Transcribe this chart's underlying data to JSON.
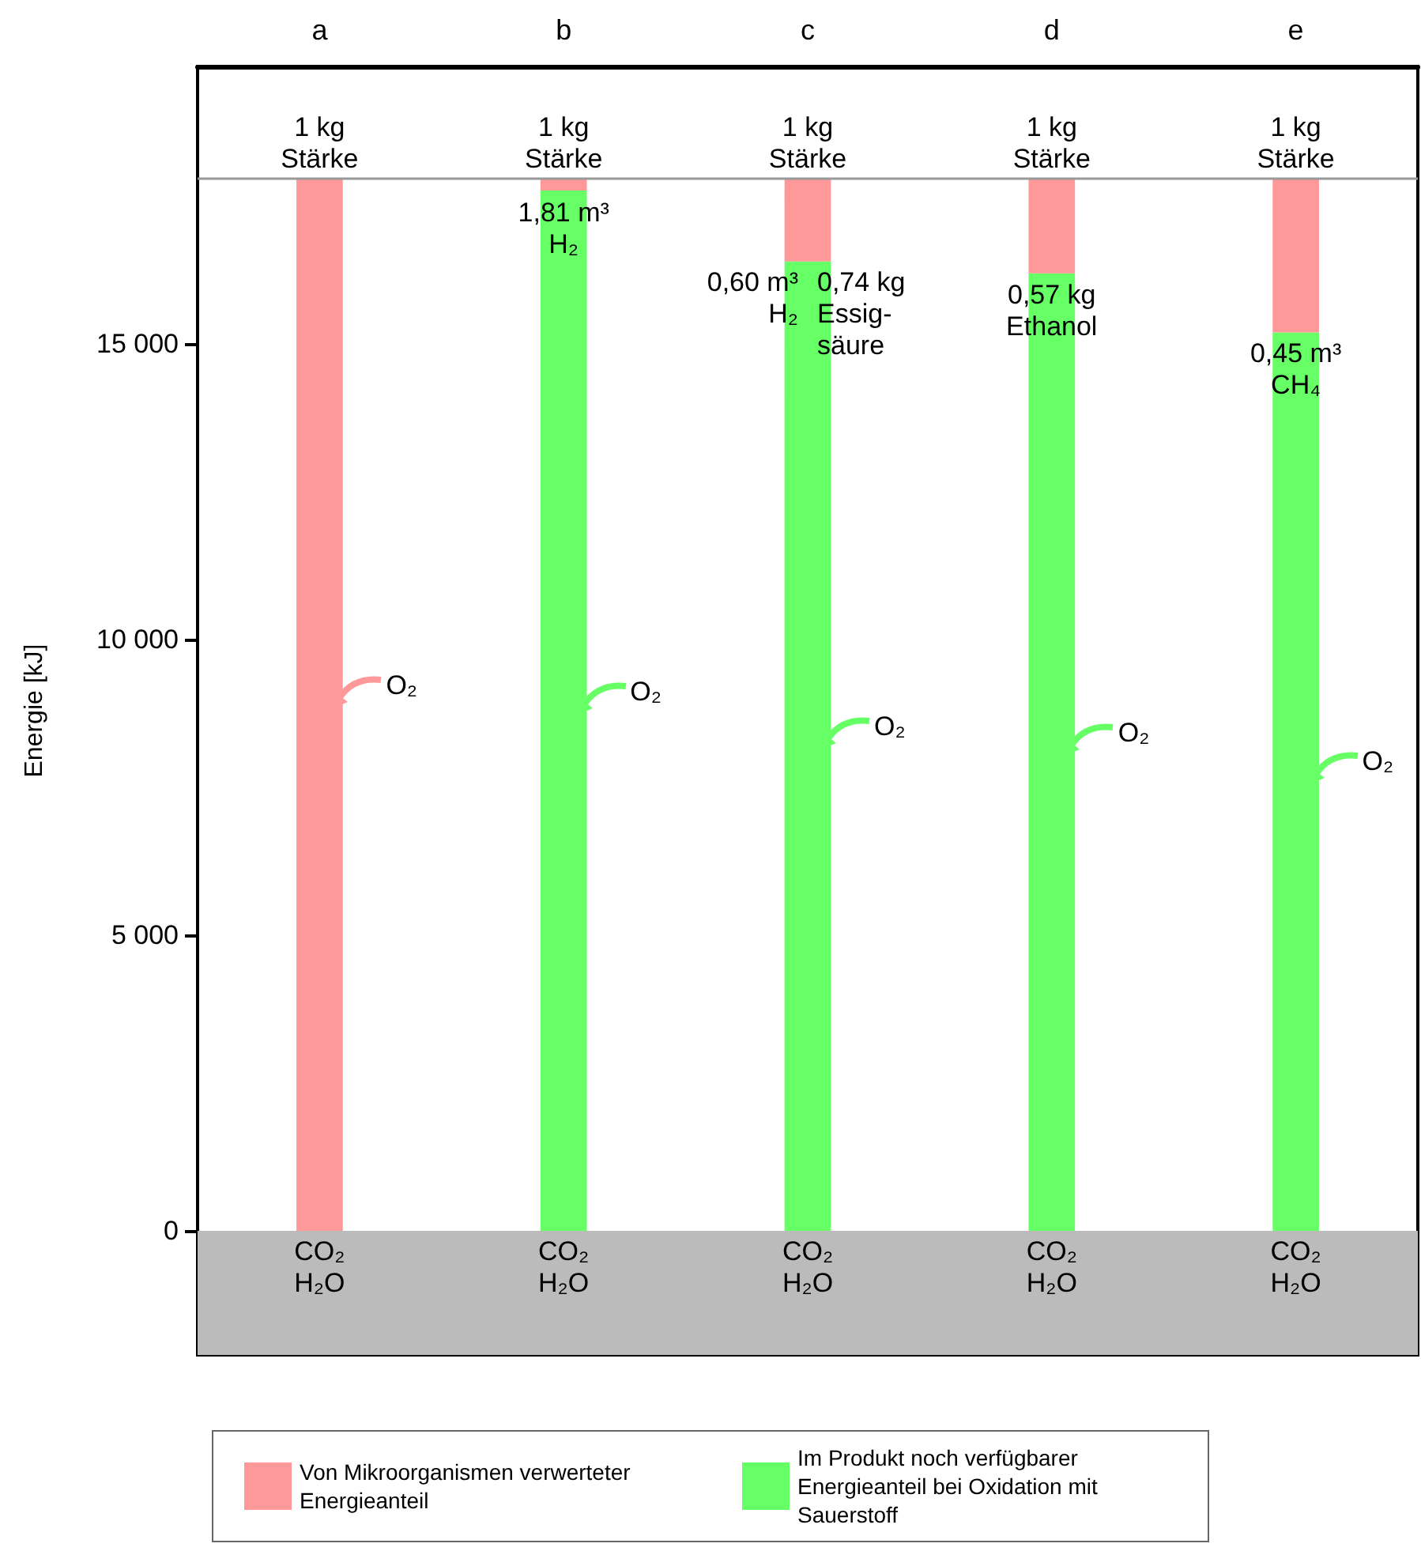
{
  "chart_data": {
    "type": "bar",
    "stacked": true,
    "categories": [
      "a",
      "b",
      "c",
      "d",
      "e"
    ],
    "series": [
      {
        "name": "Im Produkt noch verfügbarer Energieanteil bei Oxidation mit Sauerstoff",
        "color": "#66ff66",
        "values": [
          0,
          17600,
          16400,
          16200,
          15200
        ]
      },
      {
        "name": "Von Mikroorganismen verwerteter Energieanteil",
        "color": "#ff9999",
        "values": [
          17800,
          200,
          1400,
          1600,
          2600
        ]
      }
    ],
    "ylabel": "Energie [kJ]",
    "ylim": [
      -2100,
      19700
    ],
    "yticks": [
      0,
      {
        "value": 5000,
        "label": "5 000"
      },
      {
        "value": 10000,
        "label": "10 000"
      },
      {
        "value": 15000,
        "label": "15 000"
      }
    ],
    "grid": false,
    "legend": "bottom",
    "ref_lines": [
      {
        "axis": "y",
        "value": 17800,
        "color": "#999999"
      }
    ],
    "bands": [
      {
        "axis": "y",
        "from": -2100,
        "to": 0,
        "color": "#bbbbbb"
      }
    ],
    "annotations": [
      {
        "text": "1 kg Stärke",
        "x": "a",
        "y": 17800
      },
      {
        "text": "1 kg Stärke",
        "x": "b",
        "y": 17800
      },
      {
        "text": "1 kg Stärke",
        "x": "c",
        "y": 17800
      },
      {
        "text": "1 kg Stärke",
        "x": "d",
        "y": 17800
      },
      {
        "text": "1 kg Stärke",
        "x": "e",
        "y": 17800
      },
      {
        "text": "1,81 m³ H₂",
        "x": "b",
        "y": 17600
      },
      {
        "text": "0,60 m³ H₂",
        "x": "c",
        "y": 16400
      },
      {
        "text": "0,74 kg Essig-säure",
        "x": "c",
        "y": 16400
      },
      {
        "text": "0,57 kg Ethanol",
        "x": "d",
        "y": 16200
      },
      {
        "text": "0,45 m³ CH₄",
        "x": "e",
        "y": 15200
      },
      "O₂",
      "O₂",
      "O₂",
      "O₂",
      "O₂",
      {
        "text": "CO₂ H₂O",
        "x": "a",
        "y": 0
      },
      {
        "text": "CO₂ H₂O",
        "x": "b",
        "y": 0
      },
      {
        "text": "CO₂ H₂O",
        "x": "c",
        "y": 0
      },
      {
        "text": "CO₂ H₂O",
        "x": "d",
        "y": 0
      },
      {
        "text": "CO₂ H₂O",
        "x": "e",
        "y": 0
      }
    ]
  }
}
